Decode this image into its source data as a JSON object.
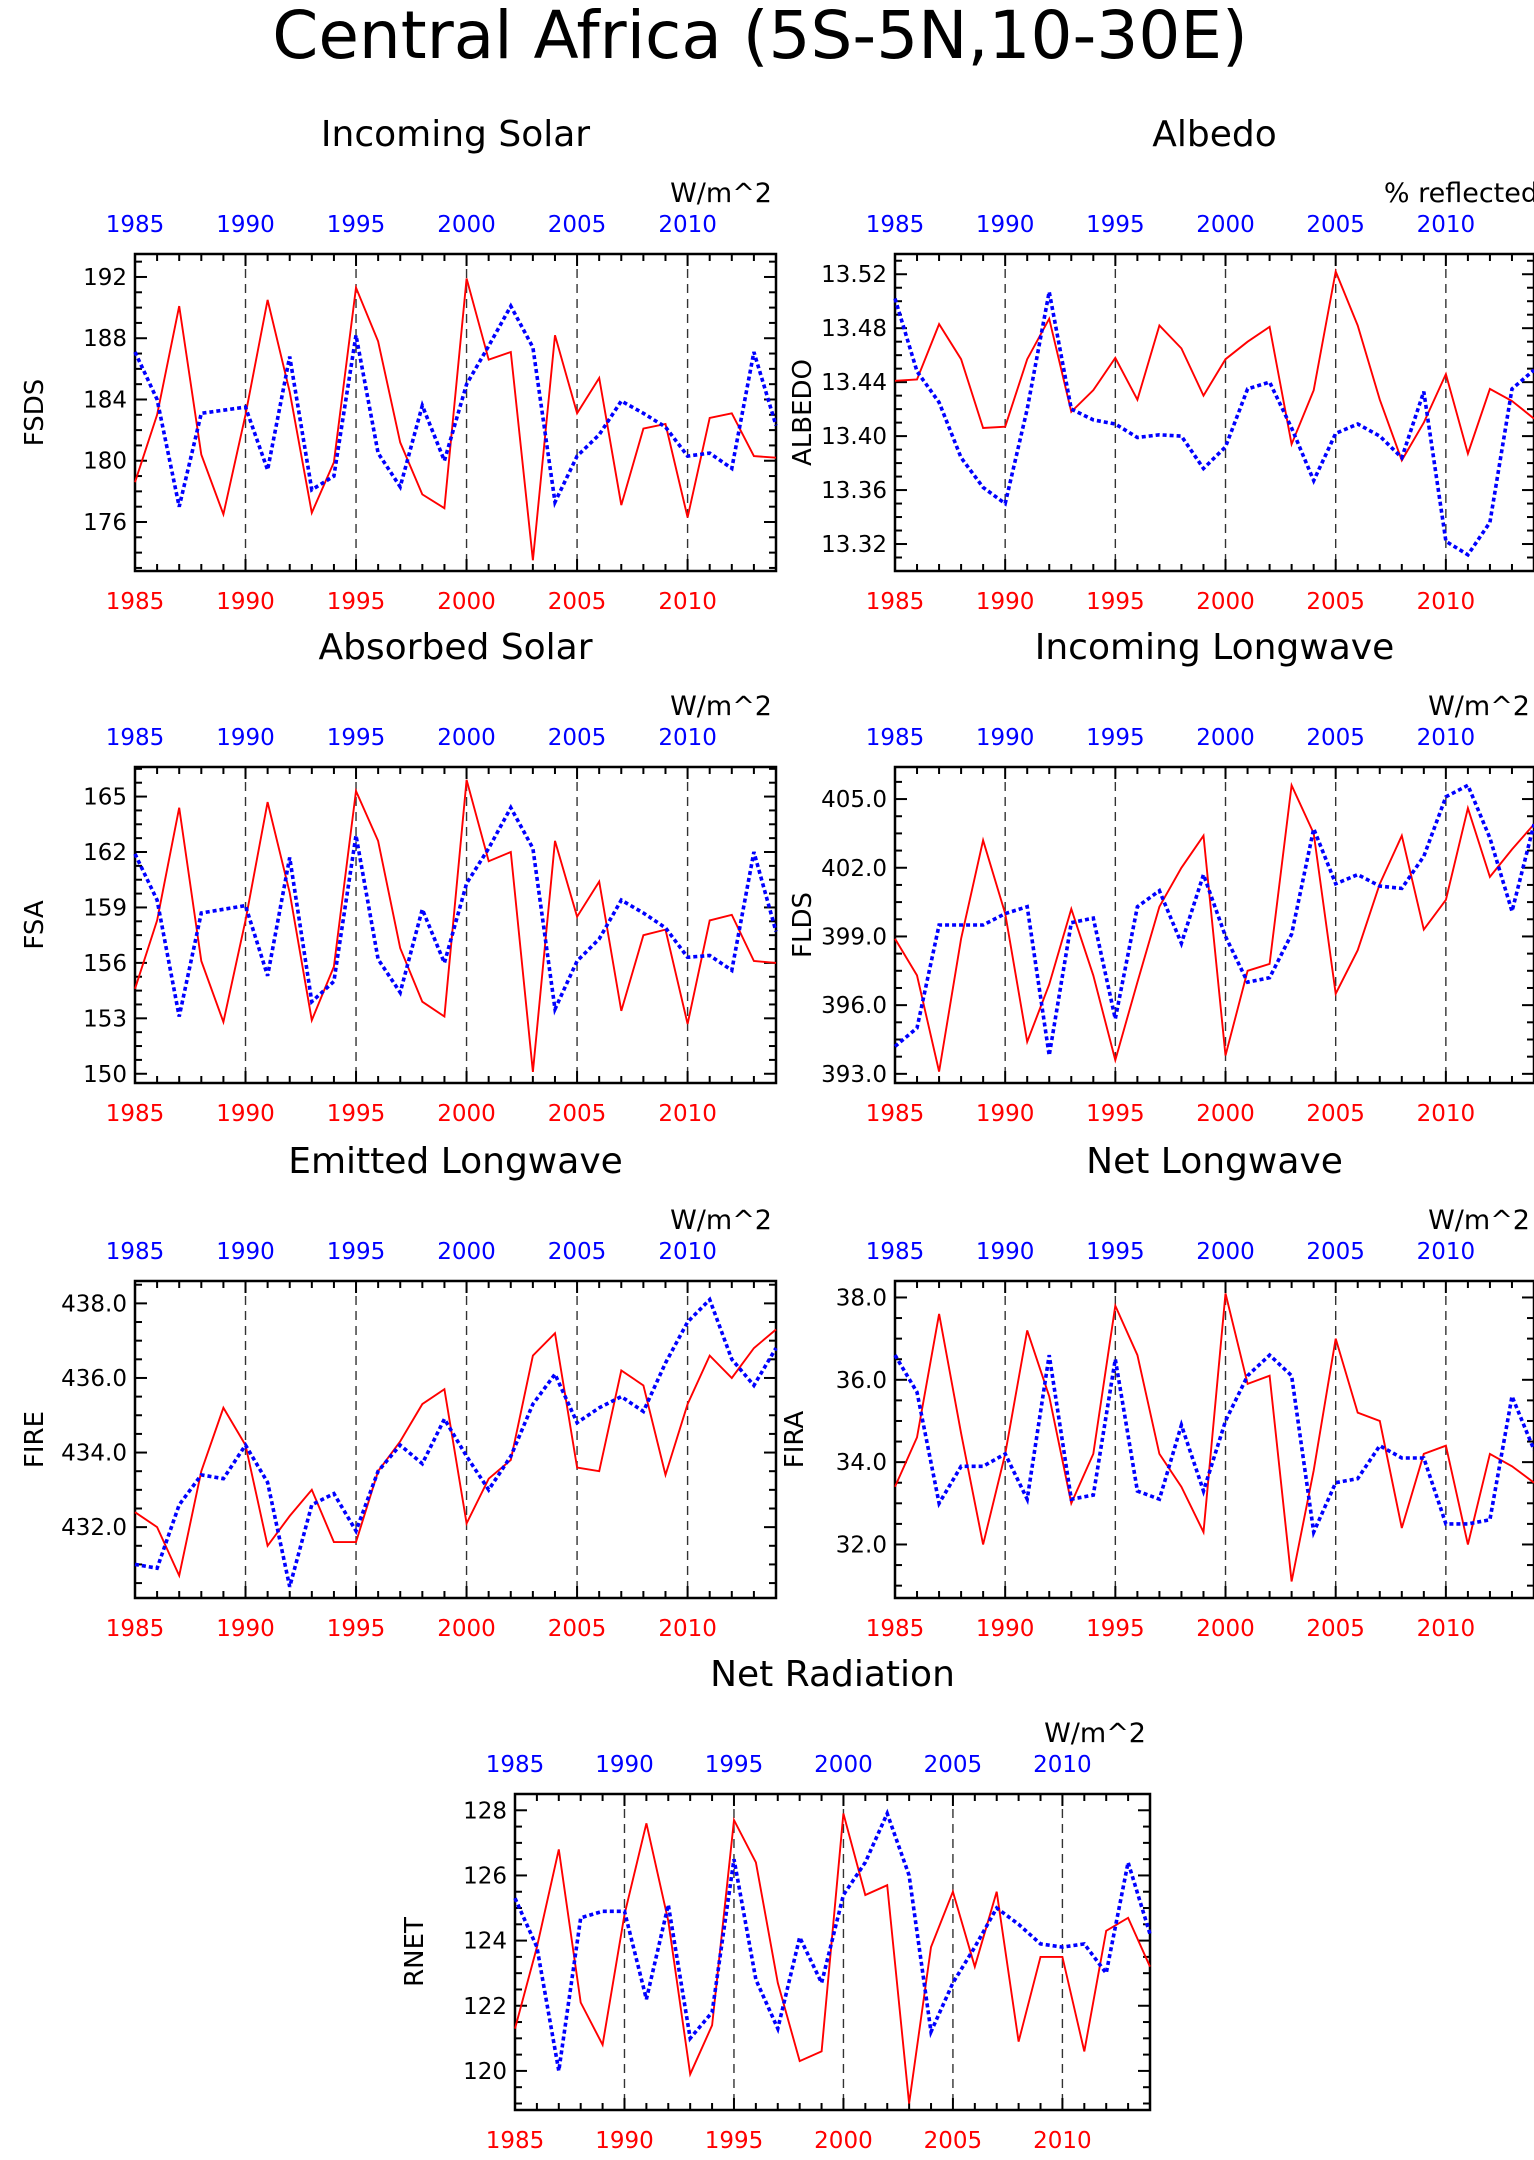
{
  "figure": {
    "title": "Central Africa (5S-5N,10-30E)"
  },
  "colors": {
    "series_a": "#ff0000",
    "series_b": "#0000ff",
    "frame": "#000000",
    "grid": "#333333"
  },
  "chart_data": [
    {
      "type": "line",
      "title": "Incoming Solar",
      "units": "W/m^2",
      "ylabel": "FSDS",
      "x": [
        1985,
        1986,
        1987,
        1988,
        1989,
        1990,
        1991,
        1992,
        1993,
        1994,
        1995,
        1996,
        1997,
        1998,
        1999,
        2000,
        2001,
        2002,
        2003,
        2004,
        2005,
        2006,
        2007,
        2008,
        2009,
        2010,
        2011,
        2012,
        2013,
        2014
      ],
      "xlim": [
        1985,
        2014
      ],
      "x_ticks": [
        1985,
        1990,
        1995,
        2000,
        2005,
        2010
      ],
      "x_tick_labels": [
        "1985",
        "1990",
        "1995",
        "2000",
        "2005",
        "2010"
      ],
      "ylim": [
        172.8,
        193.5
      ],
      "y_ticks": [
        176,
        180,
        184,
        188,
        192
      ],
      "y_tick_labels": [
        "176",
        "180",
        "184",
        "188",
        "192"
      ],
      "grid": "vertical dashed at x ticks",
      "series": [
        {
          "style": "solid",
          "values": [
            178.6,
            183.0,
            190.1,
            180.4,
            176.5,
            183.0,
            190.5,
            184.5,
            176.6,
            179.9,
            191.3,
            187.8,
            181.2,
            177.8,
            176.9,
            191.9,
            186.6,
            187.1,
            173.5,
            188.2,
            183.1,
            185.4,
            177.1,
            182.1,
            182.4,
            176.3,
            182.8,
            183.1,
            180.3,
            180.2
          ]
        },
        {
          "style": "dotted",
          "values": [
            187.1,
            184.0,
            177.0,
            183.1,
            183.3,
            183.5,
            179.4,
            186.8,
            178.1,
            179.0,
            188.2,
            180.5,
            178.3,
            183.6,
            180.0,
            185.0,
            187.5,
            190.1,
            187.4,
            177.3,
            180.3,
            181.7,
            183.9,
            183.1,
            182.2,
            180.3,
            180.5,
            179.5,
            187.1,
            182.3
          ]
        }
      ]
    },
    {
      "type": "line",
      "title": "Albedo",
      "units": "% reflected",
      "ylabel": "ALBEDO",
      "x": [
        1985,
        1986,
        1987,
        1988,
        1989,
        1990,
        1991,
        1992,
        1993,
        1994,
        1995,
        1996,
        1997,
        1998,
        1999,
        2000,
        2001,
        2002,
        2003,
        2004,
        2005,
        2006,
        2007,
        2008,
        2009,
        2010,
        2011,
        2012,
        2013,
        2014
      ],
      "xlim": [
        1985,
        2014
      ],
      "x_ticks": [
        1985,
        1990,
        1995,
        2000,
        2005,
        2010
      ],
      "x_tick_labels": [
        "1985",
        "1990",
        "1995",
        "2000",
        "2005",
        "2010"
      ],
      "ylim": [
        13.3,
        13.535
      ],
      "y_ticks": [
        13.32,
        13.36,
        13.4,
        13.44,
        13.48,
        13.52
      ],
      "y_tick_labels": [
        "13.32",
        "13.36",
        "13.40",
        "13.44",
        "13.48",
        "13.52"
      ],
      "grid": "vertical dashed at x ticks",
      "series": [
        {
          "style": "solid",
          "values": [
            13.441,
            13.442,
            13.483,
            13.457,
            13.406,
            13.407,
            13.457,
            13.487,
            13.418,
            13.434,
            13.458,
            13.427,
            13.482,
            13.465,
            13.43,
            13.457,
            13.47,
            13.481,
            13.394,
            13.434,
            13.522,
            13.482,
            13.427,
            13.382,
            13.41,
            13.446,
            13.387,
            13.435,
            13.426,
            13.413
          ]
        },
        {
          "style": "dotted",
          "values": [
            13.502,
            13.448,
            13.425,
            13.384,
            13.362,
            13.35,
            13.42,
            13.507,
            13.42,
            13.412,
            13.409,
            13.399,
            13.401,
            13.4,
            13.376,
            13.392,
            13.435,
            13.44,
            13.406,
            13.367,
            13.402,
            13.409,
            13.4,
            13.384,
            13.433,
            13.322,
            13.312,
            13.336,
            13.435,
            13.449
          ]
        }
      ]
    },
    {
      "type": "line",
      "title": "Absorbed Solar",
      "units": "W/m^2",
      "ylabel": "FSA",
      "x": [
        1985,
        1986,
        1987,
        1988,
        1989,
        1990,
        1991,
        1992,
        1993,
        1994,
        1995,
        1996,
        1997,
        1998,
        1999,
        2000,
        2001,
        2002,
        2003,
        2004,
        2005,
        2006,
        2007,
        2008,
        2009,
        2010,
        2011,
        2012,
        2013,
        2014
      ],
      "xlim": [
        1985,
        2014
      ],
      "x_ticks": [
        1985,
        1990,
        1995,
        2000,
        2005,
        2010
      ],
      "x_tick_labels": [
        "1985",
        "1990",
        "1995",
        "2000",
        "2005",
        "2010"
      ],
      "ylim": [
        149.5,
        166.6
      ],
      "y_ticks": [
        150,
        153,
        156,
        159,
        162,
        165
      ],
      "y_tick_labels": [
        "150",
        "153",
        "156",
        "159",
        "162",
        "165"
      ],
      "grid": "vertical dashed at x ticks",
      "series": [
        {
          "style": "solid",
          "values": [
            154.6,
            158.3,
            164.4,
            156.1,
            152.8,
            158.3,
            164.7,
            159.8,
            152.9,
            155.8,
            165.3,
            162.6,
            156.8,
            153.9,
            153.1,
            165.9,
            161.5,
            162.0,
            150.1,
            162.6,
            158.5,
            160.4,
            153.4,
            157.5,
            157.8,
            152.7,
            158.3,
            158.6,
            156.1,
            156.0
          ]
        },
        {
          "style": "dotted",
          "values": [
            161.9,
            159.4,
            153.1,
            158.7,
            158.9,
            159.1,
            155.3,
            161.7,
            153.9,
            155.0,
            162.9,
            156.2,
            154.4,
            158.9,
            156.0,
            160.3,
            162.2,
            164.4,
            162.2,
            153.5,
            156.1,
            157.3,
            159.4,
            158.7,
            157.9,
            156.3,
            156.4,
            155.6,
            162.0,
            157.7
          ]
        }
      ]
    },
    {
      "type": "line",
      "title": "Incoming Longwave",
      "units": "W/m^2",
      "ylabel": "FLDS",
      "x": [
        1985,
        1986,
        1987,
        1988,
        1989,
        1990,
        1991,
        1992,
        1993,
        1994,
        1995,
        1996,
        1997,
        1998,
        1999,
        2000,
        2001,
        2002,
        2003,
        2004,
        2005,
        2006,
        2007,
        2008,
        2009,
        2010,
        2011,
        2012,
        2013,
        2014
      ],
      "xlim": [
        1985,
        2014
      ],
      "x_ticks": [
        1985,
        1990,
        1995,
        2000,
        2005,
        2010
      ],
      "x_tick_labels": [
        "1985",
        "1990",
        "1995",
        "2000",
        "2005",
        "2010"
      ],
      "ylim": [
        392.6,
        406.4
      ],
      "y_ticks": [
        393.0,
        396.0,
        399.0,
        402.0,
        405.0
      ],
      "y_tick_labels": [
        "393.0",
        "396.0",
        "399.0",
        "402.0",
        "405.0"
      ],
      "grid": "vertical dashed at x ticks",
      "series": [
        {
          "style": "solid",
          "values": [
            398.9,
            397.3,
            393.1,
            398.9,
            403.2,
            400.0,
            394.4,
            396.9,
            400.2,
            397.3,
            393.6,
            397.0,
            400.3,
            402.0,
            403.4,
            393.8,
            397.5,
            397.8,
            405.6,
            403.5,
            396.5,
            398.4,
            401.3,
            403.4,
            399.3,
            400.6,
            404.6,
            401.6,
            402.8,
            403.9
          ]
        },
        {
          "style": "dotted",
          "values": [
            394.2,
            395.0,
            399.5,
            399.5,
            399.5,
            400.0,
            400.3,
            393.8,
            399.6,
            399.8,
            395.4,
            400.3,
            401.0,
            398.7,
            401.7,
            399.0,
            397.0,
            397.2,
            399.1,
            403.7,
            401.3,
            401.7,
            401.2,
            401.1,
            402.5,
            405.1,
            405.6,
            403.3,
            400.1,
            403.9
          ]
        }
      ]
    },
    {
      "type": "line",
      "title": "Emitted Longwave",
      "units": "W/m^2",
      "ylabel": "FIRE",
      "x": [
        1985,
        1986,
        1987,
        1988,
        1989,
        1990,
        1991,
        1992,
        1993,
        1994,
        1995,
        1996,
        1997,
        1998,
        1999,
        2000,
        2001,
        2002,
        2003,
        2004,
        2005,
        2006,
        2007,
        2008,
        2009,
        2010,
        2011,
        2012,
        2013,
        2014
      ],
      "xlim": [
        1985,
        2014
      ],
      "x_ticks": [
        1985,
        1990,
        1995,
        2000,
        2005,
        2010
      ],
      "x_tick_labels": [
        "1985",
        "1990",
        "1995",
        "2000",
        "2005",
        "2010"
      ],
      "ylim": [
        430.1,
        438.6
      ],
      "y_ticks": [
        432.0,
        434.0,
        436.0,
        438.0
      ],
      "y_tick_labels": [
        "432.0",
        "434.0",
        "436.0",
        "438.0"
      ],
      "grid": "vertical dashed at x ticks",
      "series": [
        {
          "style": "solid",
          "values": [
            432.4,
            432.0,
            430.7,
            433.5,
            435.2,
            434.2,
            431.5,
            432.3,
            433.0,
            431.6,
            431.6,
            433.5,
            434.3,
            435.3,
            435.7,
            432.1,
            433.3,
            433.8,
            436.6,
            437.2,
            433.6,
            433.5,
            436.2,
            435.8,
            433.4,
            435.3,
            436.6,
            436.0,
            436.8,
            437.3
          ]
        },
        {
          "style": "dotted",
          "values": [
            431.0,
            430.9,
            432.6,
            433.4,
            433.3,
            434.2,
            433.2,
            430.4,
            432.6,
            432.9,
            431.9,
            433.5,
            434.2,
            433.7,
            434.9,
            433.9,
            433.0,
            433.9,
            435.3,
            436.1,
            434.8,
            435.2,
            435.5,
            435.1,
            436.4,
            437.5,
            438.1,
            436.5,
            435.8,
            436.8
          ]
        }
      ]
    },
    {
      "type": "line",
      "title": "Net Longwave",
      "units": "W/m^2",
      "ylabel": "FIRA",
      "x": [
        1985,
        1986,
        1987,
        1988,
        1989,
        1990,
        1991,
        1992,
        1993,
        1994,
        1995,
        1996,
        1997,
        1998,
        1999,
        2000,
        2001,
        2002,
        2003,
        2004,
        2005,
        2006,
        2007,
        2008,
        2009,
        2010,
        2011,
        2012,
        2013,
        2014
      ],
      "xlim": [
        1985,
        2014
      ],
      "x_ticks": [
        1985,
        1990,
        1995,
        2000,
        2005,
        2010
      ],
      "x_tick_labels": [
        "1985",
        "1990",
        "1995",
        "2000",
        "2005",
        "2010"
      ],
      "ylim": [
        30.7,
        38.4
      ],
      "y_ticks": [
        32.0,
        34.0,
        36.0,
        38.0
      ],
      "y_tick_labels": [
        "32.0",
        "34.0",
        "36.0",
        "38.0"
      ],
      "grid": "vertical dashed at x ticks",
      "series": [
        {
          "style": "solid",
          "values": [
            33.4,
            34.6,
            37.6,
            34.7,
            32.0,
            34.2,
            37.2,
            35.6,
            33.0,
            34.2,
            37.8,
            36.6,
            34.2,
            33.4,
            32.3,
            38.1,
            35.9,
            36.1,
            31.1,
            33.8,
            37.0,
            35.2,
            35.0,
            32.4,
            34.2,
            34.4,
            32.0,
            34.2,
            33.9,
            33.5
          ]
        },
        {
          "style": "dotted",
          "values": [
            36.6,
            35.7,
            33.0,
            33.9,
            33.9,
            34.2,
            33.1,
            36.6,
            33.1,
            33.2,
            36.5,
            33.3,
            33.1,
            34.9,
            33.3,
            35.0,
            36.1,
            36.6,
            36.1,
            32.3,
            33.5,
            33.6,
            34.4,
            34.1,
            34.1,
            32.5,
            32.5,
            32.6,
            35.6,
            34.3
          ]
        }
      ]
    },
    {
      "type": "line",
      "title": "Net Radiation",
      "units": "W/m^2",
      "ylabel": "RNET",
      "x": [
        1985,
        1986,
        1987,
        1988,
        1989,
        1990,
        1991,
        1992,
        1993,
        1994,
        1995,
        1996,
        1997,
        1998,
        1999,
        2000,
        2001,
        2002,
        2003,
        2004,
        2005,
        2006,
        2007,
        2008,
        2009,
        2010,
        2011,
        2012,
        2013,
        2014
      ],
      "xlim": [
        1985,
        2014
      ],
      "x_ticks": [
        1985,
        1990,
        1995,
        2000,
        2005,
        2010
      ],
      "x_tick_labels": [
        "1985",
        "1990",
        "1995",
        "2000",
        "2005",
        "2010"
      ],
      "ylim": [
        118.8,
        128.5
      ],
      "y_ticks": [
        120,
        122,
        124,
        126,
        128
      ],
      "y_tick_labels": [
        "120",
        "122",
        "124",
        "126",
        "128"
      ],
      "grid": "vertical dashed at x ticks",
      "series": [
        {
          "style": "solid",
          "values": [
            121.3,
            123.8,
            126.8,
            122.1,
            120.8,
            124.8,
            127.6,
            124.6,
            119.9,
            121.4,
            127.7,
            126.4,
            122.7,
            120.3,
            120.6,
            127.9,
            125.4,
            125.7,
            119.0,
            123.8,
            125.5,
            123.2,
            125.5,
            120.9,
            123.5,
            123.5,
            120.6,
            124.3,
            124.7,
            123.2
          ]
        },
        {
          "style": "dotted",
          "values": [
            125.3,
            123.8,
            120.0,
            124.7,
            124.9,
            124.9,
            122.2,
            125.1,
            121.0,
            121.8,
            126.5,
            122.8,
            121.3,
            124.1,
            122.7,
            125.4,
            126.4,
            127.9,
            126.0,
            121.2,
            122.7,
            123.8,
            125.0,
            124.5,
            123.9,
            123.8,
            123.9,
            123.0,
            126.4,
            124.2
          ]
        }
      ]
    }
  ]
}
